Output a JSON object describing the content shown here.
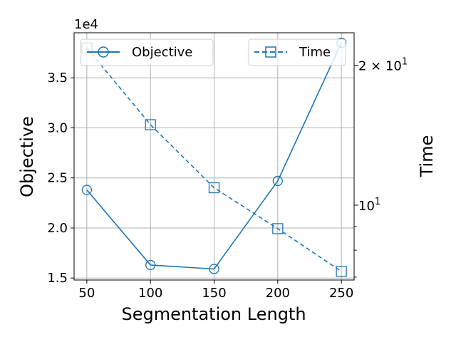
{
  "colors": {
    "series": "#1f77b4",
    "grid": "#b0b0b0",
    "axis": "#000000"
  },
  "chart_data": {
    "type": "line",
    "title": "",
    "xlabel": "Segmentation Length",
    "ylabel": "Objective",
    "y2label": "Time",
    "y_offset_label": "1e4",
    "x": [
      50,
      100,
      150,
      200,
      250
    ],
    "x_ticks": [
      "50",
      "100",
      "150",
      "200",
      "250"
    ],
    "xlim": [
      40,
      260
    ],
    "ylim": [
      14800,
      39500
    ],
    "y_ticks": [
      {
        "value": 15000,
        "label": "1.5"
      },
      {
        "value": 20000,
        "label": "2.0"
      },
      {
        "value": 25000,
        "label": "2.5"
      },
      {
        "value": 30000,
        "label": "3.0"
      },
      {
        "value": 35000,
        "label": "3.5"
      }
    ],
    "y2_scale": "log",
    "y2lim": [
      6.9,
      23.5
    ],
    "y2_major_ticks": [
      {
        "value": 10,
        "base": "10",
        "exp": "1",
        "coef": ""
      },
      {
        "value": 20,
        "base": "10",
        "exp": "1",
        "coef": "2 × "
      }
    ],
    "y2_minor_ticks": [
      9,
      8,
      7
    ],
    "grid": true,
    "series": [
      {
        "name": "Objective",
        "axis": "left",
        "linestyle": "solid",
        "marker": "circle",
        "values": [
          23800,
          16300,
          15900,
          24700,
          38500
        ]
      },
      {
        "name": "Time",
        "axis": "right",
        "linestyle": "dashed",
        "marker": "square",
        "values": [
          21.8,
          14.9,
          10.9,
          8.9,
          7.2
        ]
      }
    ],
    "legend": [
      {
        "label": "Objective",
        "placement": "upper-left"
      },
      {
        "label": "Time",
        "placement": "upper-right"
      }
    ]
  }
}
